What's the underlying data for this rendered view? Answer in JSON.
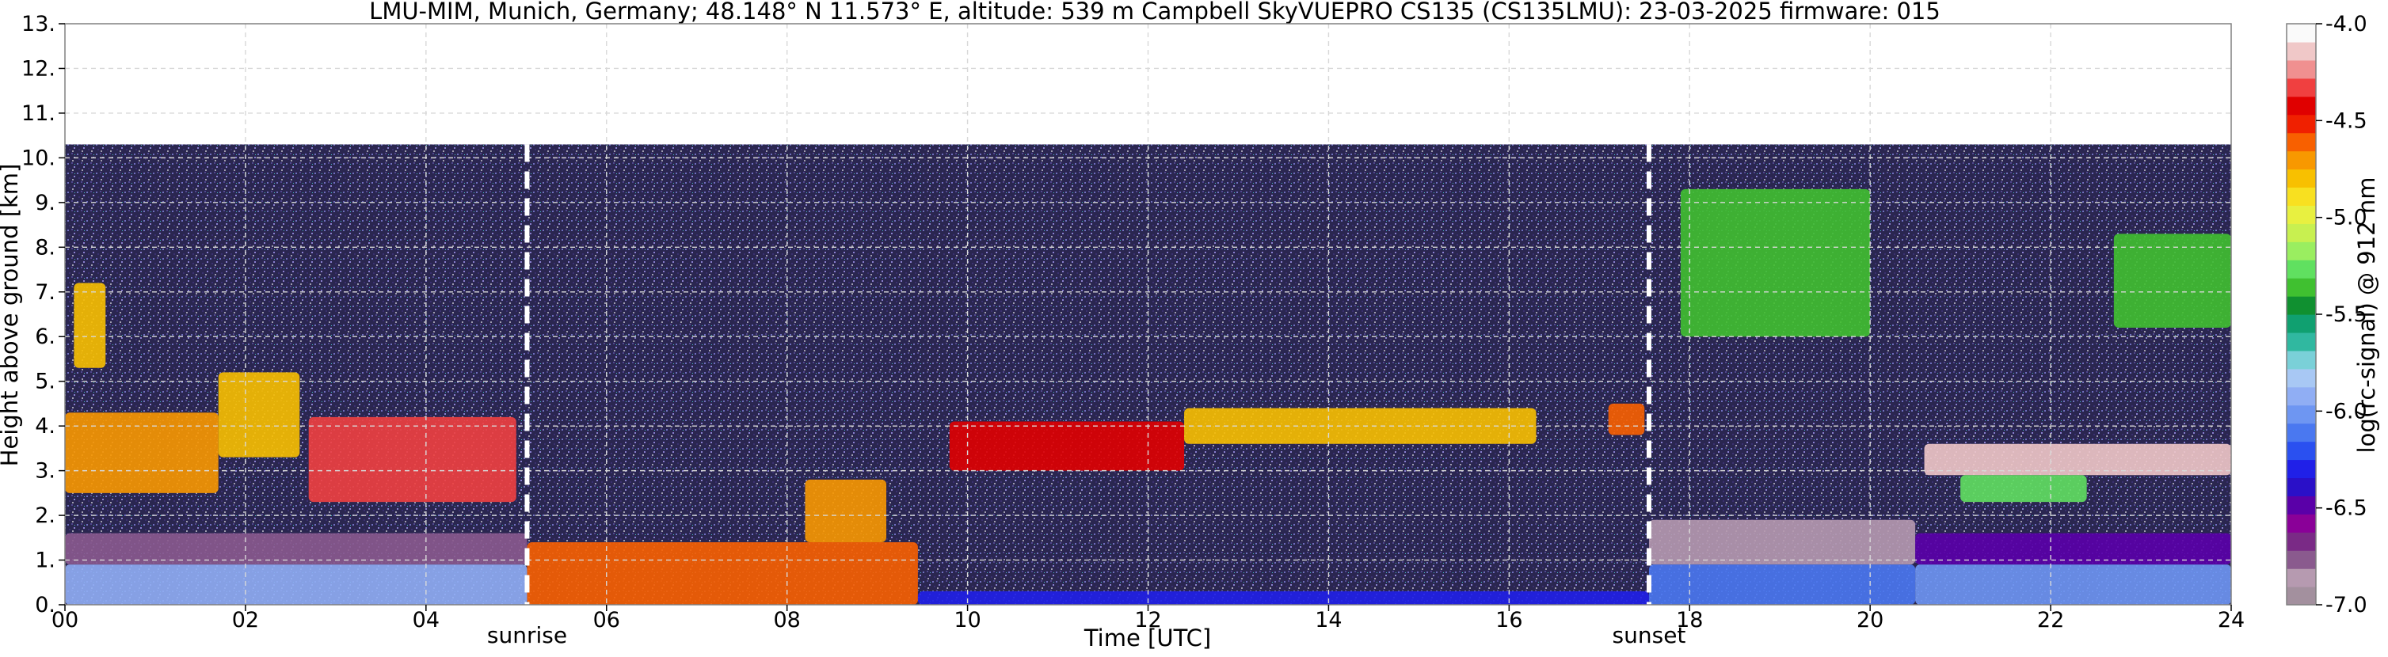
{
  "chart_data": {
    "type": "heatmap",
    "title": "LMU-MIM, Munich, Germany; 48.148° N 11.573° E, altitude: 539 m    Campbell SkyVUEPRO CS135 (CS135LMU): 23-03-2025    firmware: 015",
    "xlabel": "Time [UTC]",
    "ylabel": "Height above ground [km]",
    "xlim": [
      0,
      24
    ],
    "ylim": [
      0,
      13
    ],
    "x_ticks": [
      0,
      2,
      4,
      6,
      8,
      10,
      12,
      14,
      16,
      18,
      20,
      22,
      24
    ],
    "x_tick_labels": [
      "00",
      "02",
      "04",
      "06",
      "08",
      "10",
      "12",
      "14",
      "16",
      "18",
      "20",
      "22",
      "24"
    ],
    "y_ticks": [
      0,
      1,
      2,
      3,
      4,
      5,
      6,
      7,
      8,
      9,
      10,
      11,
      12,
      13
    ],
    "y_tick_labels": [
      "0.",
      "1.",
      "2.",
      "3.",
      "4.",
      "5.",
      "6.",
      "7.",
      "8.",
      "9.",
      "10.",
      "11.",
      "12.",
      "13."
    ],
    "grid": true,
    "data_top_km": 10.3,
    "markers": [
      {
        "label": "sunrise",
        "time": 5.12
      },
      {
        "label": "sunset",
        "time": 17.55
      }
    ],
    "colorbar": {
      "label": "log(rc-signal) @ 912 nm",
      "range": [
        -7.0,
        -4.0
      ],
      "ticks": [
        -7.0,
        -6.5,
        -6.0,
        -5.5,
        -5.0,
        -4.5,
        -4.0
      ],
      "tick_labels": [
        "-7.0",
        "-6.5",
        "-6.0",
        "-5.5",
        "-5.0",
        "-4.5",
        "-4.0"
      ],
      "colors": [
        "#a3909e",
        "#b69ab0",
        "#8a5a8e",
        "#7a2a86",
        "#8a0098",
        "#5a00a8",
        "#2a10c8",
        "#2020e8",
        "#2a50f0",
        "#4a78f0",
        "#6e96f2",
        "#90aef4",
        "#a8c8f4",
        "#7ad0d8",
        "#30b8a0",
        "#10a070",
        "#109030",
        "#40c030",
        "#60e060",
        "#9aee60",
        "#c8f050",
        "#e8f040",
        "#f8e020",
        "#f8c000",
        "#f89800",
        "#f86000",
        "#f02000",
        "#e00000",
        "#f04040",
        "#f09090",
        "#f0c8c8",
        "#fafafa"
      ]
    },
    "features": [
      {
        "name": "boundary-layer",
        "t0": 0,
        "t1": 5.12,
        "h0": 0,
        "h1": 0.9,
        "level": -5.9
      },
      {
        "name": "residual-layer",
        "t0": 0,
        "t1": 5.12,
        "h0": 0.9,
        "h1": 1.6,
        "level": -6.8
      },
      {
        "name": "aerosol-layer",
        "t0": 5.12,
        "t1": 9.45,
        "h0": 0,
        "h1": 1.4,
        "level": -4.6
      },
      {
        "name": "aerosol-plume",
        "t0": 8.2,
        "t1": 9.1,
        "h0": 1.4,
        "h1": 2.8,
        "level": -4.7
      },
      {
        "name": "surface-layer",
        "t0": 9.45,
        "t1": 17.55,
        "h0": 0,
        "h1": 0.3,
        "level": -6.3
      },
      {
        "name": "surface-layer",
        "t0": 17.55,
        "t1": 20.5,
        "h0": 0,
        "h1": 0.9,
        "level": -6.1
      },
      {
        "name": "residual-layer",
        "t0": 17.55,
        "t1": 20.5,
        "h0": 0.9,
        "h1": 1.9,
        "level": -6.9
      },
      {
        "name": "surface-layer",
        "t0": 20.5,
        "t1": 24,
        "h0": 0,
        "h1": 0.9,
        "level": -6.0
      },
      {
        "name": "residual-layer",
        "t0": 20.5,
        "t1": 24,
        "h0": 0.9,
        "h1": 1.6,
        "level": -6.5
      },
      {
        "name": "cloud-layer",
        "t0": 0,
        "t1": 1.7,
        "h0": 2.5,
        "h1": 4.3,
        "level": -4.7
      },
      {
        "name": "cloud-layer",
        "t0": 0.1,
        "t1": 0.45,
        "h0": 5.3,
        "h1": 7.2,
        "level": -4.8
      },
      {
        "name": "cloud-layer",
        "t0": 1.7,
        "t1": 2.6,
        "h0": 3.3,
        "h1": 5.2,
        "level": -4.8
      },
      {
        "name": "cloud-layer",
        "t0": 2.7,
        "t1": 5.0,
        "h0": 2.3,
        "h1": 4.2,
        "level": -4.3
      },
      {
        "name": "cloud-layer",
        "t0": 9.8,
        "t1": 12.4,
        "h0": 3.0,
        "h1": 4.1,
        "level": -4.4
      },
      {
        "name": "cloud-layer",
        "t0": 12.4,
        "t1": 16.3,
        "h0": 3.6,
        "h1": 4.4,
        "level": -4.8
      },
      {
        "name": "cloud-layer",
        "t0": 17.1,
        "t1": 17.5,
        "h0": 3.8,
        "h1": 4.5,
        "level": -4.6
      },
      {
        "name": "cirrus-band",
        "t0": 17.9,
        "t1": 20.0,
        "h0": 6.0,
        "h1": 9.3,
        "level": -5.4
      },
      {
        "name": "cloud-base",
        "t0": 20.6,
        "t1": 24,
        "h0": 2.9,
        "h1": 3.6,
        "level": -4.1
      },
      {
        "name": "lower-cloud",
        "t0": 21.0,
        "t1": 22.4,
        "h0": 2.3,
        "h1": 2.9,
        "level": -5.3
      },
      {
        "name": "cirrus-band",
        "t0": 22.7,
        "t1": 24,
        "h0": 6.2,
        "h1": 8.3,
        "level": -5.4
      }
    ]
  }
}
